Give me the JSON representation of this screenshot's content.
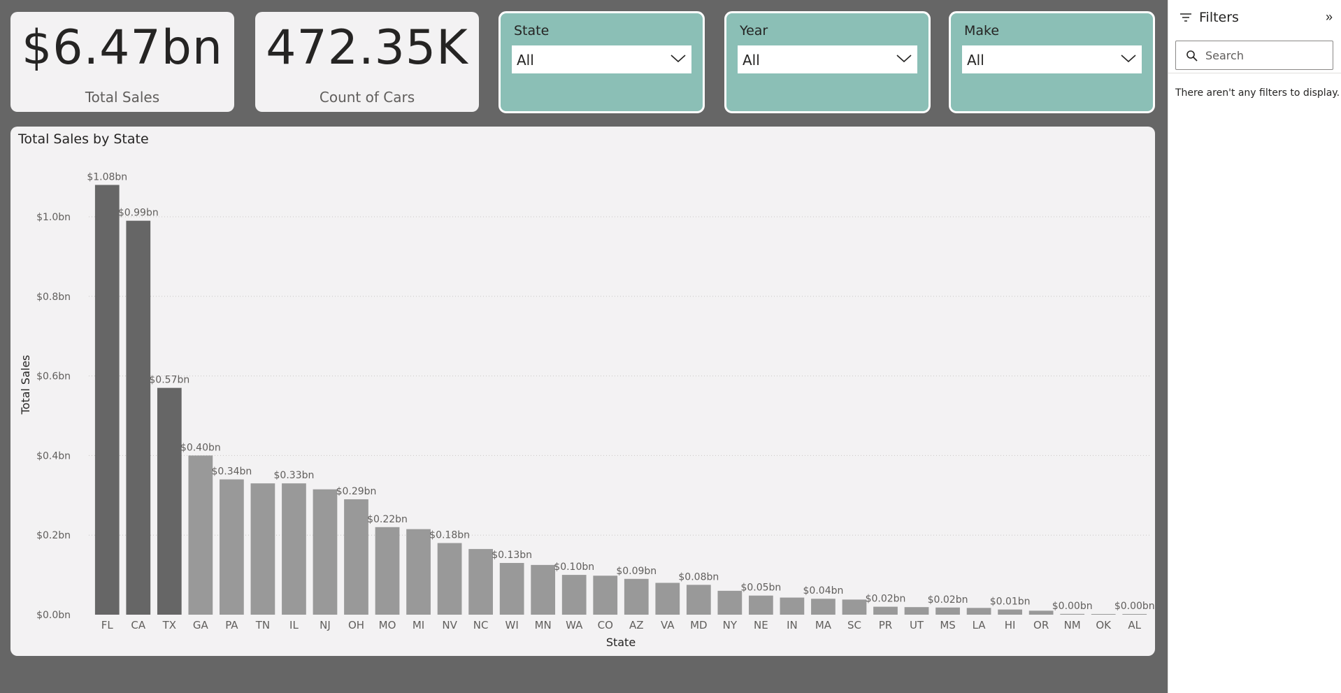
{
  "kpis": {
    "total_sales": {
      "value": "$6.47bn",
      "label": "Total Sales"
    },
    "count_of_cars": {
      "value": "472.35K",
      "label": "Count of Cars"
    }
  },
  "slicers": [
    {
      "title": "State",
      "value": "All"
    },
    {
      "title": "Year",
      "value": "All"
    },
    {
      "title": "Make",
      "value": "All"
    }
  ],
  "filters_pane": {
    "title": "Filters",
    "search_placeholder": "Search",
    "empty_message": "There aren't any filters to display."
  },
  "colors": {
    "canvas": "#666666",
    "card": "#f3f2f3",
    "slicer": "#8bbfb6",
    "bar_highlight": "#666666",
    "bar_default": "#999999",
    "text": "#252423",
    "label": "#605e5c"
  },
  "chart_data": {
    "type": "bar",
    "title": "Total Sales by State",
    "xlabel": "State",
    "ylabel": "Total Sales",
    "ylim": [
      0,
      1.13
    ],
    "yticks": [
      0.0,
      0.2,
      0.4,
      0.6,
      0.8,
      1.0
    ],
    "ytick_labels": [
      "$0.0bn",
      "$0.2bn",
      "$0.4bn",
      "$0.6bn",
      "$0.8bn",
      "$1.0bn"
    ],
    "grid": true,
    "categories": [
      "FL",
      "CA",
      "TX",
      "GA",
      "PA",
      "TN",
      "IL",
      "NJ",
      "OH",
      "MO",
      "MI",
      "NV",
      "NC",
      "WI",
      "MN",
      "WA",
      "CO",
      "AZ",
      "VA",
      "MD",
      "NY",
      "NE",
      "IN",
      "MA",
      "SC",
      "PR",
      "UT",
      "MS",
      "LA",
      "HI",
      "OR",
      "NM",
      "OK",
      "AL"
    ],
    "values": [
      1.08,
      0.99,
      0.57,
      0.4,
      0.34,
      0.33,
      0.33,
      0.315,
      0.29,
      0.22,
      0.215,
      0.18,
      0.165,
      0.13,
      0.125,
      0.1,
      0.098,
      0.09,
      0.08,
      0.075,
      0.06,
      0.048,
      0.043,
      0.04,
      0.038,
      0.02,
      0.019,
      0.018,
      0.017,
      0.013,
      0.01,
      0.002,
      0.001,
      0.001
    ],
    "data_labels": [
      "$1.08bn",
      "$0.99bn",
      "$0.57bn",
      "$0.40bn",
      "$0.34bn",
      "",
      "$0.33bn",
      "",
      "$0.29bn",
      "$0.22bn",
      "",
      "$0.18bn",
      "",
      "$0.13bn",
      "",
      "$0.10bn",
      "",
      "$0.09bn",
      "",
      "$0.08bn",
      "",
      "$0.05bn",
      "",
      "$0.04bn",
      "",
      "$0.02bn",
      "",
      "$0.02bn",
      "",
      "$0.01bn",
      "",
      "$0.00bn",
      "",
      "$0.00bn"
    ],
    "highlighted": [
      "FL",
      "CA",
      "TX"
    ]
  }
}
